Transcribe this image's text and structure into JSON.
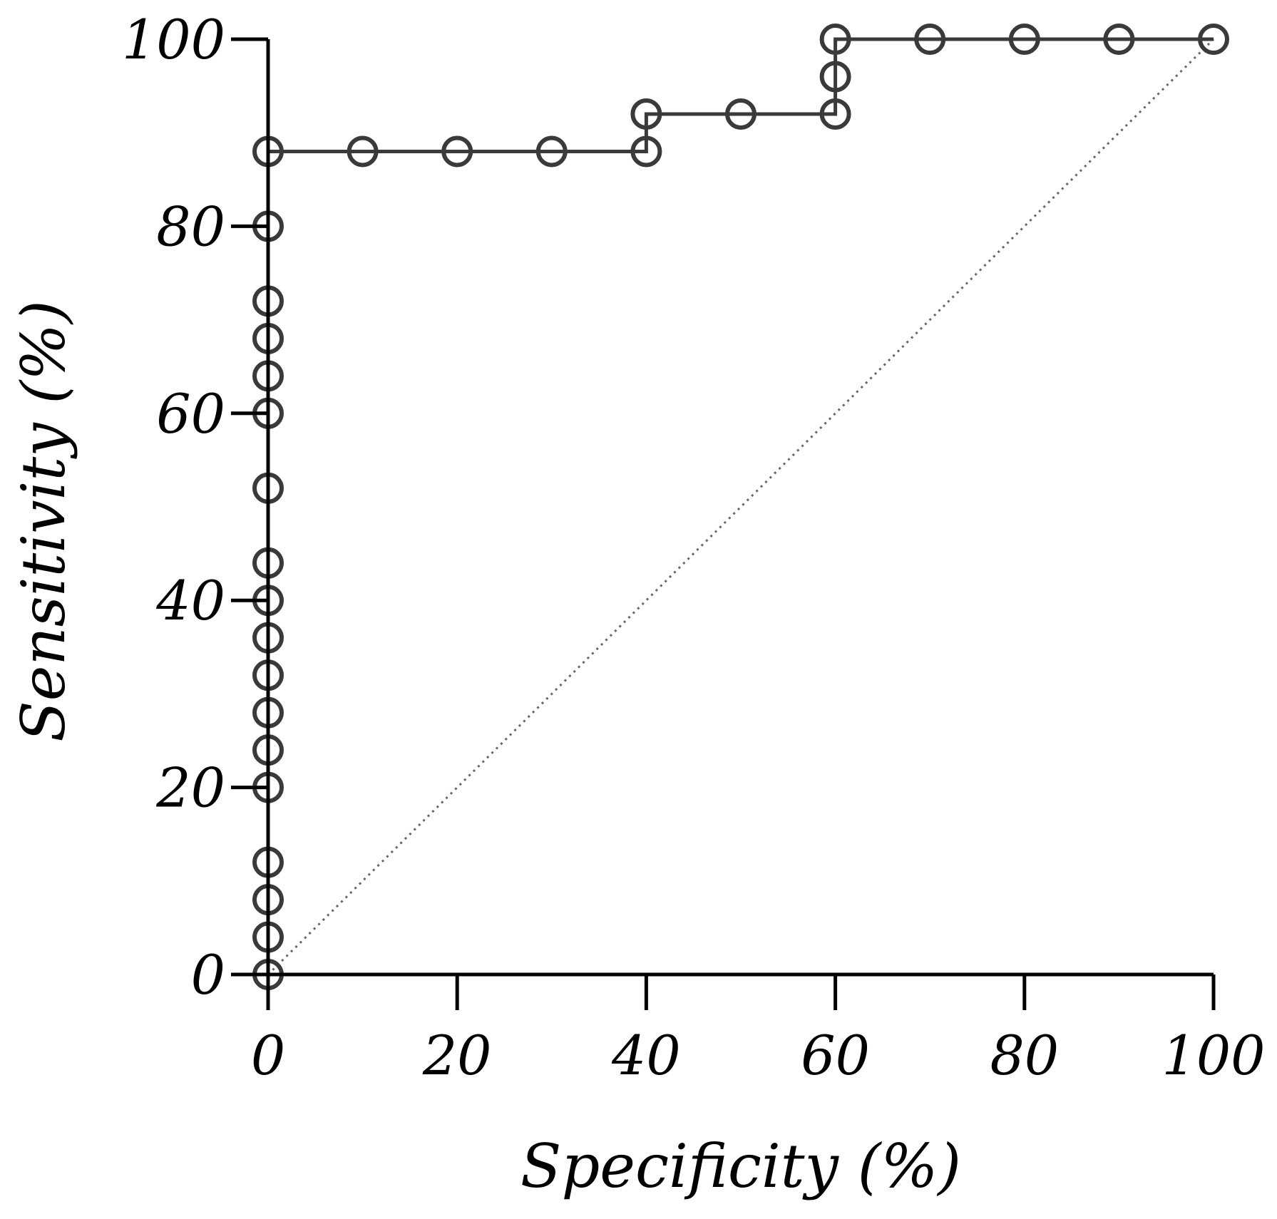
{
  "chart_data": {
    "type": "line",
    "title": "",
    "xlabel": "Specificity (%)",
    "ylabel": "Sensitivity (%)",
    "xlim": [
      0,
      100
    ],
    "ylim": [
      0,
      100
    ],
    "xticks": [
      0,
      20,
      40,
      60,
      80,
      100
    ],
    "yticks": [
      0,
      20,
      40,
      60,
      80,
      100
    ],
    "x_tick_labels": [
      "0",
      "20",
      "40",
      "60",
      "80",
      "100"
    ],
    "y_tick_labels": [
      "0",
      "20",
      "40",
      "60",
      "80",
      "100"
    ],
    "grid": false,
    "legend": "none",
    "series": [
      {
        "line_style": "step",
        "marker": "open-circle",
        "color": "#3a3a3a",
        "points": [
          {
            "x": 0,
            "y": 0
          },
          {
            "x": 0,
            "y": 4
          },
          {
            "x": 0,
            "y": 8
          },
          {
            "x": 0,
            "y": 12
          },
          {
            "x": 0,
            "y": 20
          },
          {
            "x": 0,
            "y": 24
          },
          {
            "x": 0,
            "y": 28
          },
          {
            "x": 0,
            "y": 32
          },
          {
            "x": 0,
            "y": 36
          },
          {
            "x": 0,
            "y": 40
          },
          {
            "x": 0,
            "y": 44
          },
          {
            "x": 0,
            "y": 52
          },
          {
            "x": 0,
            "y": 60
          },
          {
            "x": 0,
            "y": 64
          },
          {
            "x": 0,
            "y": 68
          },
          {
            "x": 0,
            "y": 72
          },
          {
            "x": 0,
            "y": 80
          },
          {
            "x": 0,
            "y": 88
          },
          {
            "x": 10,
            "y": 88
          },
          {
            "x": 20,
            "y": 88
          },
          {
            "x": 30,
            "y": 88
          },
          {
            "x": 40,
            "y": 88
          },
          {
            "x": 40,
            "y": 92
          },
          {
            "x": 50,
            "y": 92
          },
          {
            "x": 60,
            "y": 92
          },
          {
            "x": 60,
            "y": 96
          },
          {
            "x": 60,
            "y": 100
          },
          {
            "x": 70,
            "y": 100
          },
          {
            "x": 80,
            "y": 100
          },
          {
            "x": 90,
            "y": 100
          },
          {
            "x": 100,
            "y": 100
          }
        ]
      }
    ],
    "reference_line": {
      "style": "dotted",
      "color": "#666666",
      "from": {
        "x": 0,
        "y": 0
      },
      "to": {
        "x": 100,
        "y": 100
      }
    },
    "colors": {
      "axis": "#000000",
      "marker": "#3a3a3a"
    }
  }
}
